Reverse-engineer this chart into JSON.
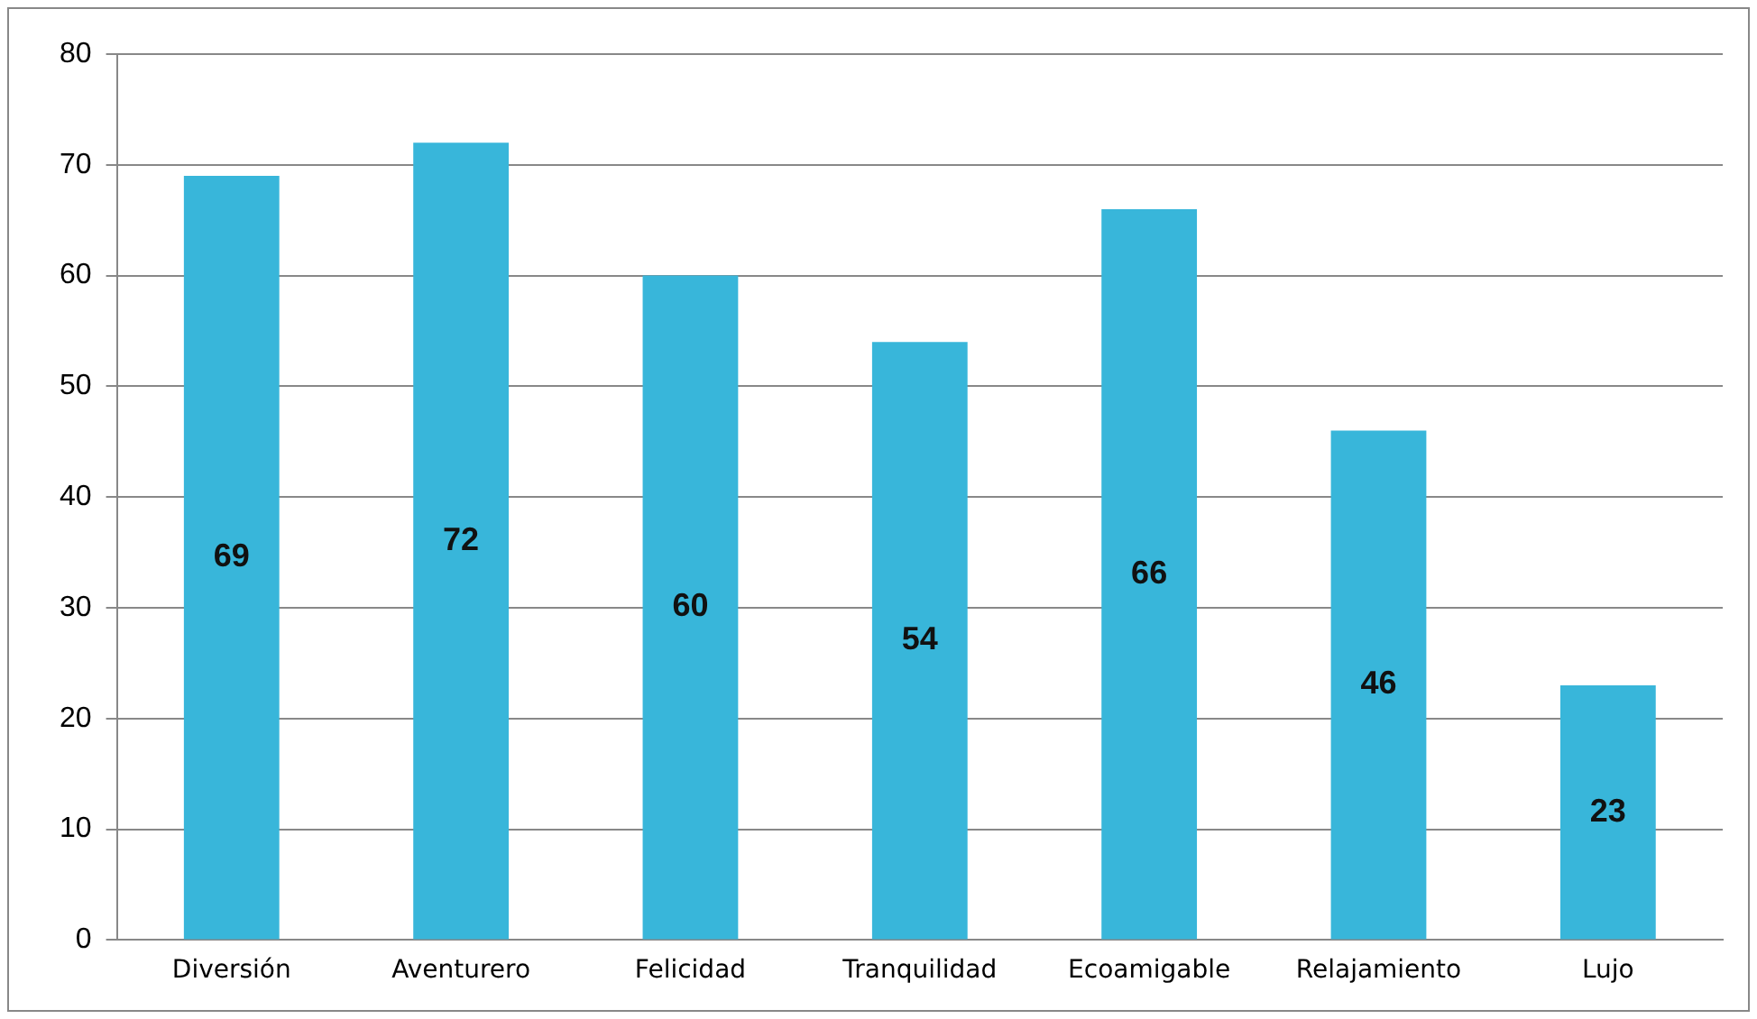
{
  "chart_data": {
    "type": "bar",
    "categories": [
      "Diversión",
      "Aventurero",
      "Felicidad",
      "Tranquilidad",
      "Ecoamigable",
      "Relajamiento",
      "Lujo"
    ],
    "values": [
      69,
      72,
      60,
      54,
      66,
      46,
      23
    ],
    "color": "#38b6da",
    "ylim": [
      0,
      80
    ],
    "yticks": [
      0,
      10,
      20,
      30,
      40,
      50,
      60,
      70,
      80
    ],
    "grid": "y",
    "data_labels": true,
    "legend": false
  }
}
